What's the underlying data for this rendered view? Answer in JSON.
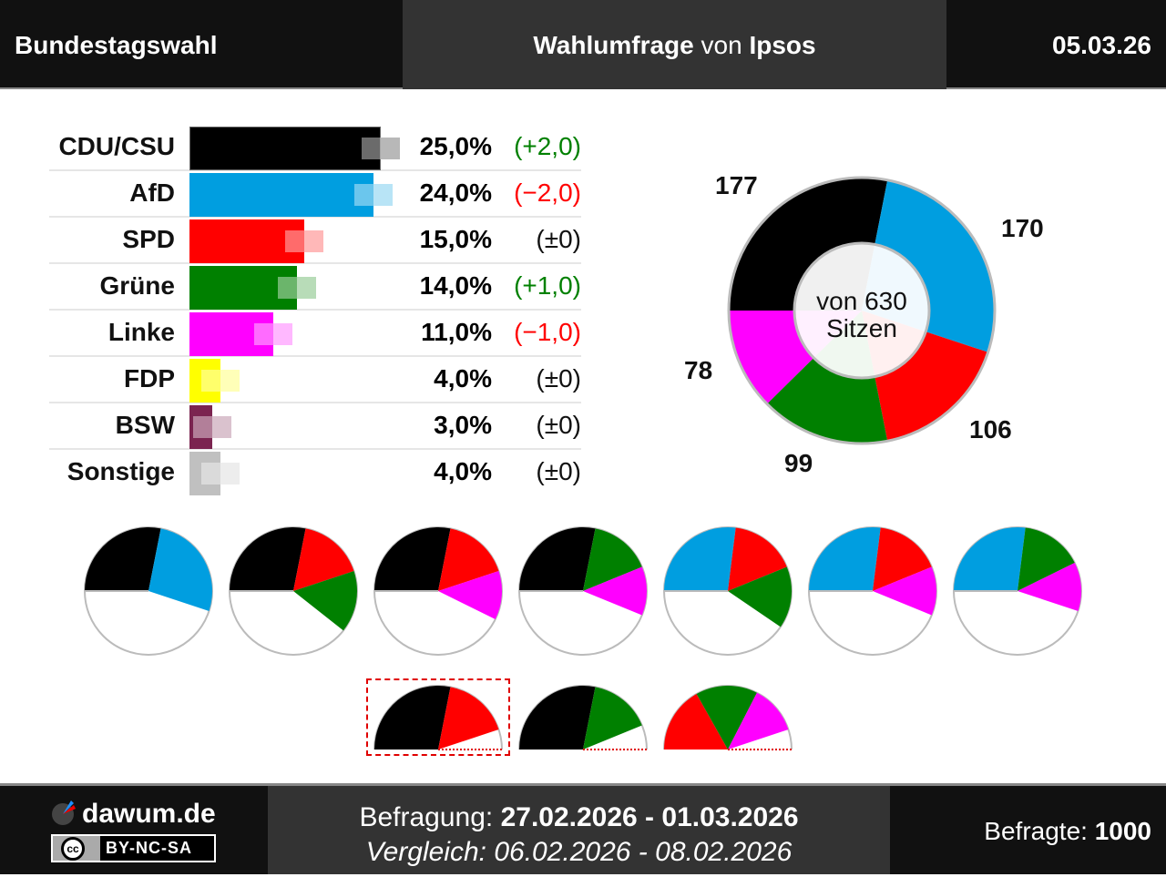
{
  "header": {
    "left": "Bundestagswahl",
    "title_bold1": "Wahlumfrage",
    "title_normal": " von ",
    "title_bold2": "Ipsos",
    "date": "05.03.26"
  },
  "parties": [
    {
      "name": "CDU/CSU",
      "pct": "25,0%",
      "change": "(+2,0)",
      "change_color": "#008000",
      "value": 25,
      "prev": 23,
      "color": "#000000"
    },
    {
      "name": "AfD",
      "pct": "24,0%",
      "change": "(−2,0)",
      "change_color": "#ff0000",
      "value": 24,
      "prev": 26,
      "color": "#009ee0"
    },
    {
      "name": "SPD",
      "pct": "15,0%",
      "change": "(±0)",
      "change_color": "#111111",
      "value": 15,
      "prev": 15,
      "color": "#ff0000"
    },
    {
      "name": "Grüne",
      "pct": "14,0%",
      "change": "(+1,0)",
      "change_color": "#008000",
      "value": 14,
      "prev": 13,
      "color": "#008000"
    },
    {
      "name": "Linke",
      "pct": "11,0%",
      "change": "(−1,0)",
      "change_color": "#ff0000",
      "value": 11,
      "prev": 12,
      "color": "#ff00ff"
    },
    {
      "name": "FDP",
      "pct": "4,0%",
      "change": "(±0)",
      "change_color": "#111111",
      "value": 4,
      "prev": 4,
      "color": "#ffff00"
    },
    {
      "name": "BSW",
      "pct": "3,0%",
      "change": "(±0)",
      "change_color": "#111111",
      "value": 3,
      "prev": 3,
      "color": "#7b2450"
    },
    {
      "name": "Sonstige",
      "pct": "4,0%",
      "change": "(±0)",
      "change_color": "#111111",
      "value": 4,
      "prev": 4,
      "color": "#c0c0c0"
    }
  ],
  "seats": {
    "total_label1": "von 630",
    "total_label2": "Sitzen",
    "total": 630,
    "distribution": [
      {
        "party": "CDU/CSU",
        "seats": 177,
        "label": "177"
      },
      {
        "party": "AfD",
        "seats": 170,
        "label": "170"
      },
      {
        "party": "SPD",
        "seats": 106,
        "label": "106"
      },
      {
        "party": "Grüne",
        "seats": 99,
        "label": "99"
      },
      {
        "party": "Linke",
        "seats": 78,
        "label": "78"
      }
    ]
  },
  "coalitions": [
    [
      "CDU/CSU",
      "AfD"
    ],
    [
      "CDU/CSU",
      "SPD",
      "Grüne"
    ],
    [
      "CDU/CSU",
      "SPD",
      "Linke"
    ],
    [
      "CDU/CSU",
      "Grüne",
      "Linke"
    ],
    [
      "AfD",
      "SPD",
      "Grüne"
    ],
    [
      "AfD",
      "SPD",
      "Linke"
    ],
    [
      "AfD",
      "Grüne",
      "Linke"
    ]
  ],
  "minority_coalitions": [
    {
      "parties": [
        "CDU/CSU",
        "SPD"
      ],
      "selected": true
    },
    {
      "parties": [
        "CDU/CSU",
        "Grüne"
      ],
      "selected": false
    },
    {
      "parties": [
        "SPD",
        "Grüne",
        "Linke"
      ],
      "selected": false
    }
  ],
  "footer": {
    "brand": "dawum.de",
    "license": "BY-NC-SA",
    "cc": "cc",
    "survey_label": "Befragung: ",
    "survey_dates": "27.02.2026 - 01.03.2026",
    "compare": "Vergleich: 06.02.2026 - 08.02.2026",
    "respondents_label": "Befragte: ",
    "respondents": "1000"
  }
}
